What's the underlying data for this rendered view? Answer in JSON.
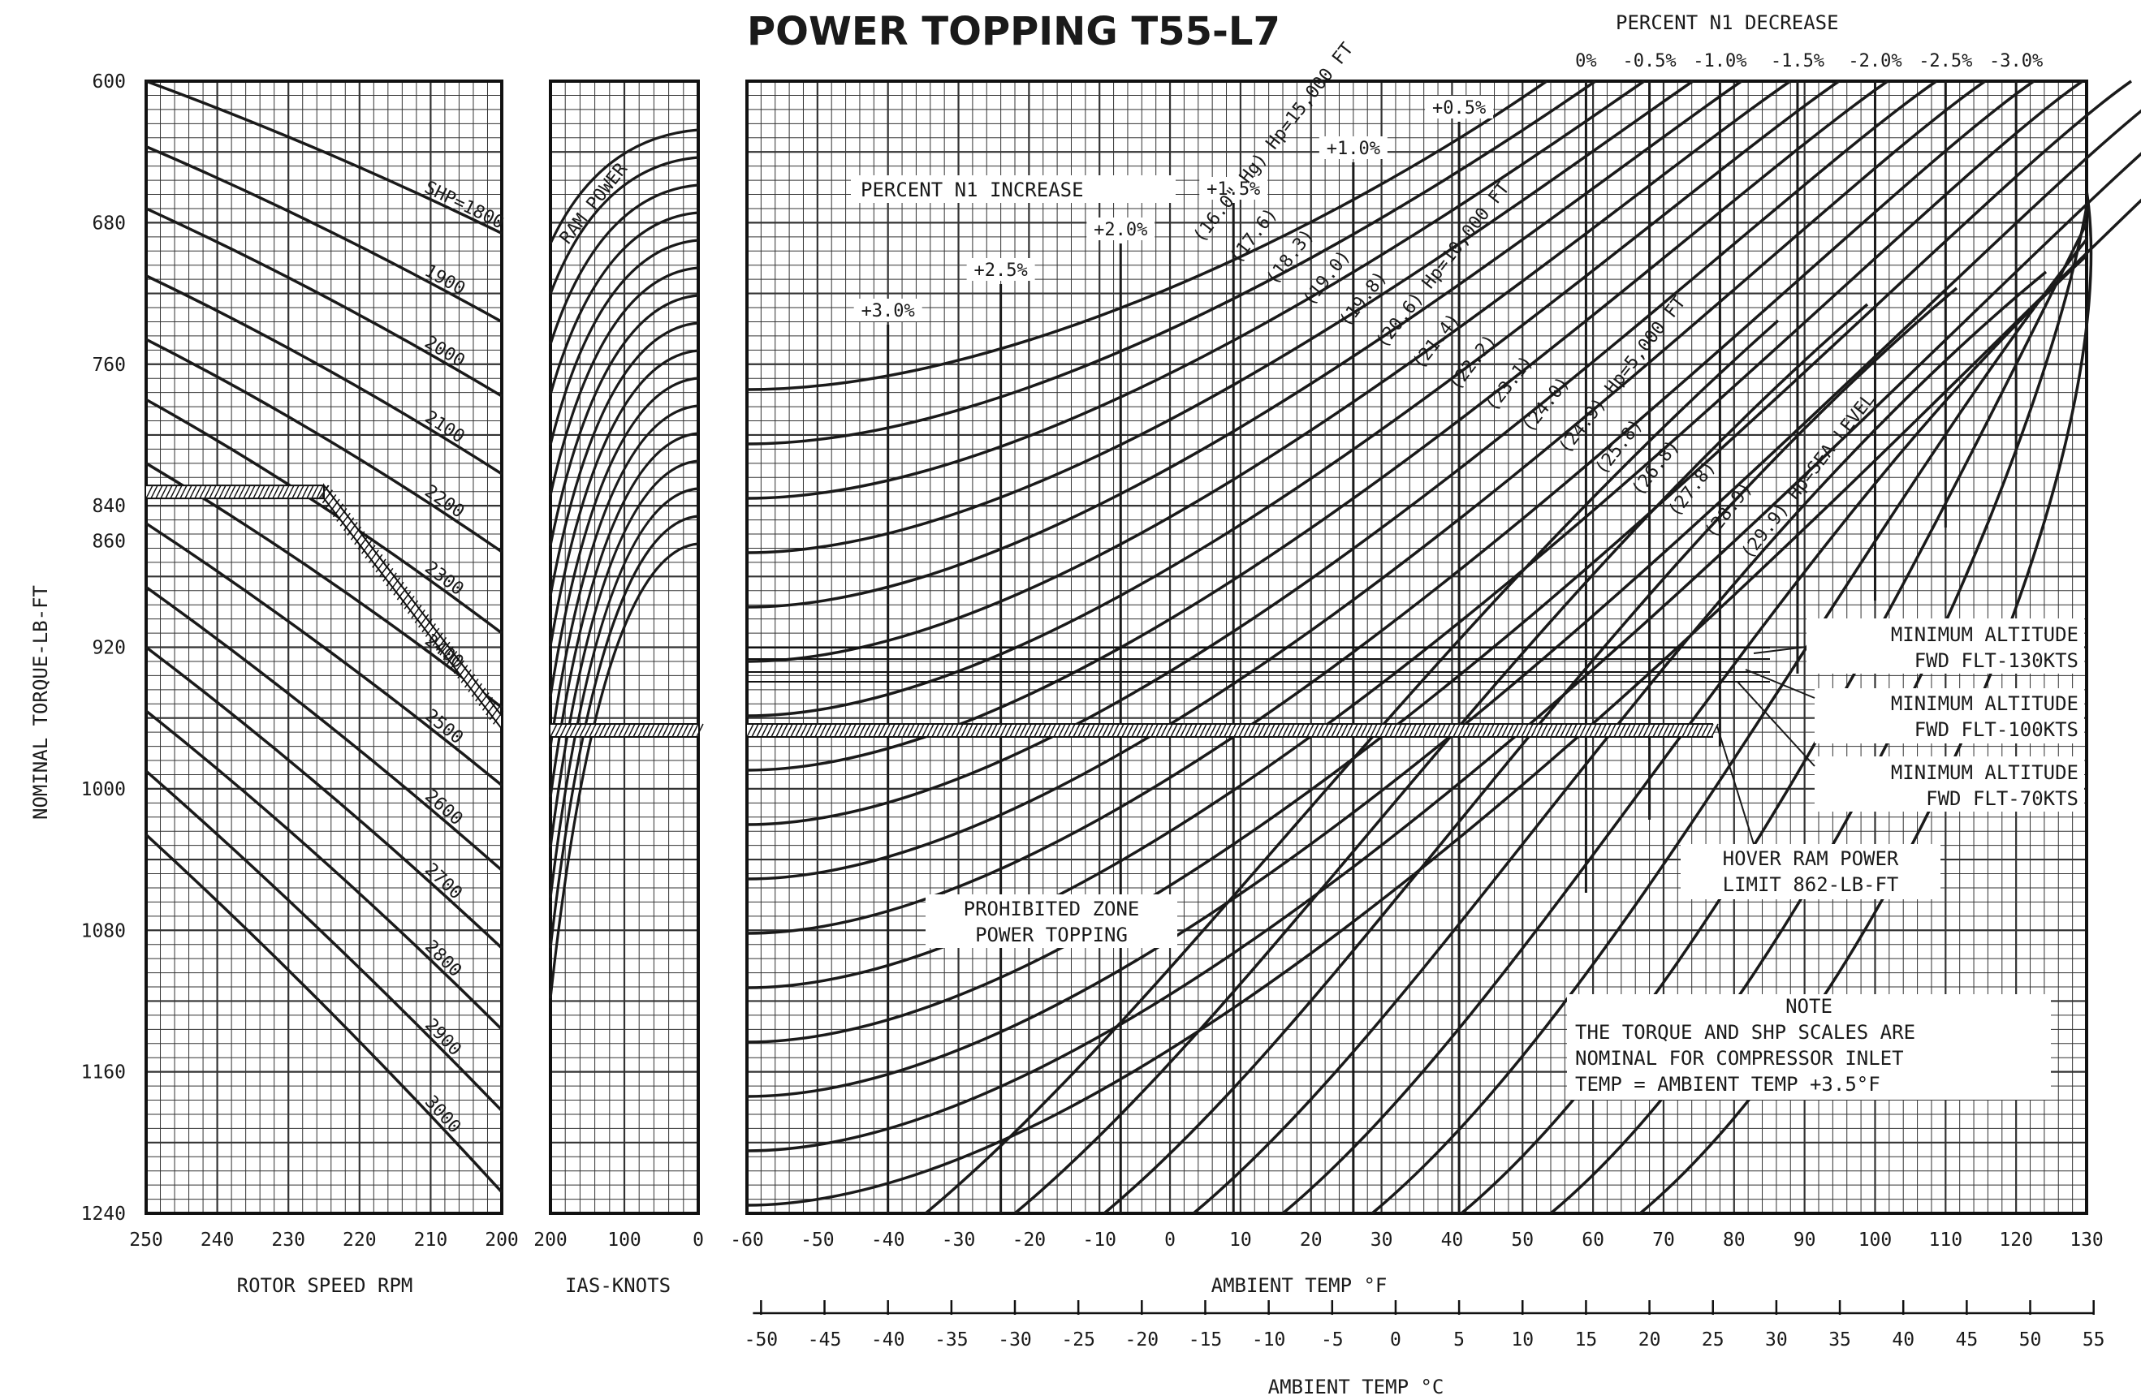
{
  "title": "POWER TOPPING T55-L7",
  "chart_data": [
    {
      "panel": "rotor_speed",
      "type": "line",
      "xlabel": "ROTOR SPEED RPM",
      "ylabel": "NOMINAL TORQUE-LB-FT",
      "xlim": [
        250,
        200
      ],
      "ylim": [
        1240,
        600
      ],
      "x_ticks": [
        250,
        240,
        230,
        220,
        210,
        200
      ],
      "y_ticks": [
        600,
        680,
        760,
        840,
        860,
        920,
        1000,
        1080,
        1160,
        1240
      ],
      "grid": true,
      "series": [
        {
          "name": "SHP=1800",
          "x": [
            250,
            225,
            200
          ],
          "y": [
            600,
            637,
            686
          ]
        },
        {
          "name": "1900",
          "x": [
            250,
            225,
            200
          ],
          "y": [
            637,
            680,
            736
          ]
        },
        {
          "name": "2000",
          "x": [
            250,
            225,
            200
          ],
          "y": [
            672,
            718,
            778
          ]
        },
        {
          "name": "2100",
          "x": [
            250,
            225,
            200
          ],
          "y": [
            710,
            758,
            822
          ]
        },
        {
          "name": "2200",
          "x": [
            250,
            225,
            200
          ],
          "y": [
            746,
            797,
            866
          ]
        },
        {
          "name": "2300",
          "x": [
            250,
            225,
            200
          ],
          "y": [
            780,
            836,
            912
          ]
        },
        {
          "name": "2400",
          "x": [
            250,
            225,
            200
          ],
          "y": [
            816,
            876,
            954
          ]
        },
        {
          "name": "2500",
          "x": [
            250,
            225,
            200
          ],
          "y": [
            850,
            916,
            998
          ]
        },
        {
          "name": "2600",
          "x": [
            250,
            225,
            200
          ],
          "y": [
            886,
            958,
            1046
          ]
        },
        {
          "name": "2700",
          "x": [
            250,
            225,
            200
          ],
          "y": [
            920,
            996,
            1090
          ]
        },
        {
          "name": "2800",
          "x": [
            250,
            225,
            200
          ],
          "y": [
            956,
            1036,
            1136
          ]
        },
        {
          "name": "2900",
          "x": [
            250,
            225,
            200
          ],
          "y": [
            990,
            1078,
            1182
          ]
        },
        {
          "name": "3000",
          "x": [
            250,
            225,
            200
          ],
          "y": [
            1026,
            1118,
            1228
          ]
        }
      ]
    },
    {
      "panel": "ias",
      "type": "line",
      "xlabel": "IAS-KNOTS",
      "xlim": [
        200,
        0
      ],
      "x_ticks": [
        200,
        100,
        0
      ],
      "x_tick_labels": [
        "200",
        "100",
        "0"
      ],
      "curve_label": "RAM POWER",
      "curve_count": 16
    },
    {
      "panel": "ambient",
      "type": "line",
      "xlabel": "AMBIENT TEMP °F",
      "xlabel_c": "AMBIENT TEMP °C",
      "xlim": [
        -60,
        130
      ],
      "x_ticks": [
        -60,
        -50,
        -40,
        -30,
        -20,
        -10,
        0,
        10,
        20,
        30,
        40,
        50,
        60,
        70,
        80,
        90,
        100,
        110,
        120,
        130
      ],
      "c_ticks": [
        -50,
        -45,
        -40,
        -35,
        -30,
        -25,
        -20,
        -15,
        -10,
        -5,
        0,
        5,
        10,
        15,
        20,
        25,
        30,
        35,
        40,
        45,
        50,
        55
      ],
      "pressure_labels": [
        "(16.0\" Hg) Hp=15,000 FT",
        "(17.6)",
        "(18.3)",
        "(19.0)",
        "(19.8)",
        "(20.6) Hp=10,000 FT",
        "(21.4)",
        "(22.2)",
        "(23.1)",
        "(24.0)",
        "(24.9) Hp=5,000 FT",
        "(25.8)",
        "(26.8)",
        "(27.8)",
        "(28.9)",
        "(29.9) Hp=SEA LEVEL"
      ],
      "n1_increase_title": "PERCENT N1 INCREASE",
      "n1_increase": [
        {
          "label": "+3.0%",
          "temp_f": -40
        },
        {
          "label": "+2.5%",
          "temp_f": -24
        },
        {
          "label": "+2.0%",
          "temp_f": -7
        },
        {
          "label": "+1.5%",
          "temp_f": 9
        },
        {
          "label": "+1.0%",
          "temp_f": 26
        },
        {
          "label": "+0.5%",
          "temp_f": 41
        }
      ],
      "n1_decrease_title": "PERCENT N1 DECREASE",
      "n1_decrease": [
        {
          "label": "0%",
          "temp_f": 59
        },
        {
          "label": "-0.5%",
          "temp_f": 68
        },
        {
          "label": "-1.0%",
          "temp_f": 78
        },
        {
          "label": "-1.5%",
          "temp_f": 89
        },
        {
          "label": "-2.0%",
          "temp_f": 100
        },
        {
          "label": "-2.5%",
          "temp_f": 110
        },
        {
          "label": "-3.0%",
          "temp_f": 120
        }
      ],
      "limit_lines": [
        {
          "label_1": "MINIMUM ALTITUDE",
          "label_2": "FWD FLT-130KTS",
          "torque": 920
        },
        {
          "label_1": "MINIMUM ALTITUDE",
          "label_2": "FWD FLT-100KTS",
          "torque": 934
        },
        {
          "label_1": "MINIMUM ALTITUDE",
          "label_2": "FWD FLT-70KTS",
          "torque": 926
        },
        {
          "label_1": "HOVER RAM POWER",
          "label_2": "LIMIT 862-LB-FT",
          "torque": 962
        }
      ],
      "prohibited_label_1": "PROHIBITED ZONE",
      "prohibited_label_2": "POWER TOPPING",
      "note_title": "NOTE",
      "note_lines": [
        "THE TORQUE AND SHP SCALES ARE",
        "NOMINAL FOR COMPRESSOR INLET",
        "TEMP = AMBIENT TEMP +3.5°F"
      ]
    }
  ],
  "example_path": {
    "torque": 862,
    "rotor_speed_rpm": 225,
    "chart_torque": 962
  }
}
